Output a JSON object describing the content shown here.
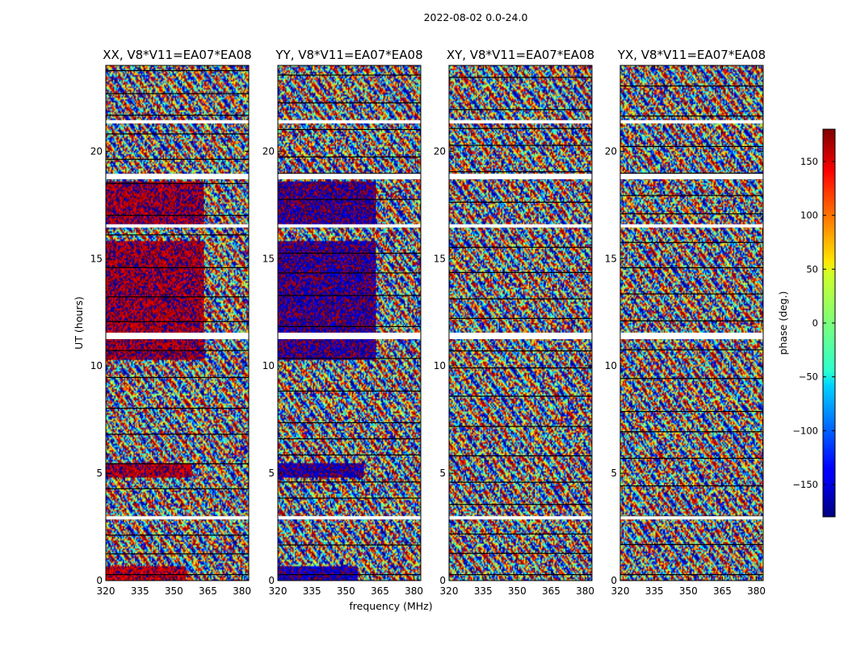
{
  "chart_data": {
    "type": "heatmap",
    "suptitle": "2022-08-02 0.0-24.0",
    "ylabel": "UT (hours)",
    "xlabel": "frequency (MHz)",
    "xlim": [
      320,
      383
    ],
    "ylim": [
      0,
      24
    ],
    "xticks": [
      320,
      335,
      350,
      365,
      380
    ],
    "yticks": [
      0,
      5,
      10,
      15,
      20
    ],
    "panels": [
      {
        "title": "XX, V8*V11=EA07*EA08",
        "pattern": "xx"
      },
      {
        "title": "YY, V8*V11=EA07*EA08",
        "pattern": "yy"
      },
      {
        "title": "XY, V8*V11=EA07*EA08",
        "pattern": "cross"
      },
      {
        "title": "YX, V8*V11=EA07*EA08",
        "pattern": "cross"
      }
    ],
    "colorbar": {
      "label": "phase (deg.)",
      "range": [
        -180,
        180
      ],
      "ticks": [
        150,
        100,
        50,
        0,
        -50,
        -100,
        -150
      ],
      "tick_labels": [
        "150",
        "100",
        "50",
        "0",
        "−50",
        "−100",
        "−150"
      ],
      "colormap": "jet"
    },
    "flag_color": "#ffffff",
    "flagged_ut_ranges_hours": [
      [
        2.85,
        3.0
      ],
      [
        11.25,
        11.55
      ],
      [
        16.45,
        16.6
      ],
      [
        18.7,
        18.95
      ],
      [
        21.3,
        21.45
      ]
    ],
    "coherent_phase_regions": [
      {
        "panel": "XX",
        "ut_hours": [
          10.25,
          15.8
        ],
        "freq_mhz": [
          320,
          363
        ],
        "phase_deg": 170
      },
      {
        "panel": "XX",
        "ut_hours": [
          16.6,
          18.6
        ],
        "freq_mhz": [
          320,
          363
        ],
        "phase_deg": 170
      },
      {
        "panel": "XX",
        "ut_hours": [
          0.0,
          0.7
        ],
        "freq_mhz": [
          320,
          355
        ],
        "phase_deg": 160
      },
      {
        "panel": "XX",
        "ut_hours": [
          4.8,
          5.5
        ],
        "freq_mhz": [
          320,
          358
        ],
        "phase_deg": 165
      },
      {
        "panel": "YY",
        "ut_hours": [
          10.25,
          15.8
        ],
        "freq_mhz": [
          320,
          363
        ],
        "phase_deg": -170
      },
      {
        "panel": "YY",
        "ut_hours": [
          16.6,
          18.6
        ],
        "freq_mhz": [
          320,
          363
        ],
        "phase_deg": -170
      },
      {
        "panel": "YY",
        "ut_hours": [
          0.0,
          0.7
        ],
        "freq_mhz": [
          320,
          355
        ],
        "phase_deg": -160
      },
      {
        "panel": "YY",
        "ut_hours": [
          4.8,
          5.5
        ],
        "freq_mhz": [
          320,
          358
        ],
        "phase_deg": -165
      }
    ]
  }
}
